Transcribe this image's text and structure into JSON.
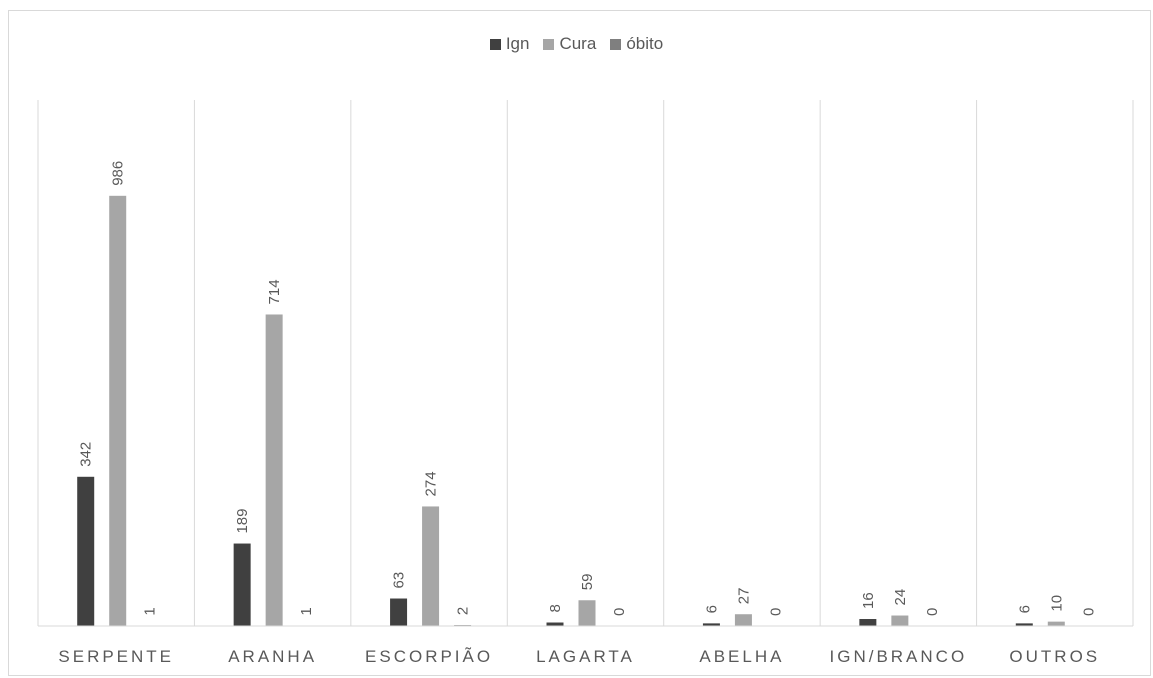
{
  "chart_data": {
    "type": "bar",
    "categories": [
      "SERPENTE",
      "ARANHA",
      "ESCORPIÃO",
      "LAGARTA",
      "ABELHA",
      "IGN/BRANCO",
      "OUTROS"
    ],
    "series": [
      {
        "name": "Ign",
        "values": [
          342,
          189,
          63,
          8,
          6,
          16,
          6
        ],
        "color": "#404040"
      },
      {
        "name": "Cura",
        "values": [
          986,
          714,
          274,
          59,
          27,
          24,
          10
        ],
        "color": "#a6a6a6"
      },
      {
        "name": "óbito",
        "values": [
          1,
          1,
          2,
          0,
          0,
          0,
          0
        ],
        "color": "#7f7f7f"
      }
    ],
    "ylim": [
      0,
      1000
    ],
    "legend_position": "top",
    "grid": false
  }
}
